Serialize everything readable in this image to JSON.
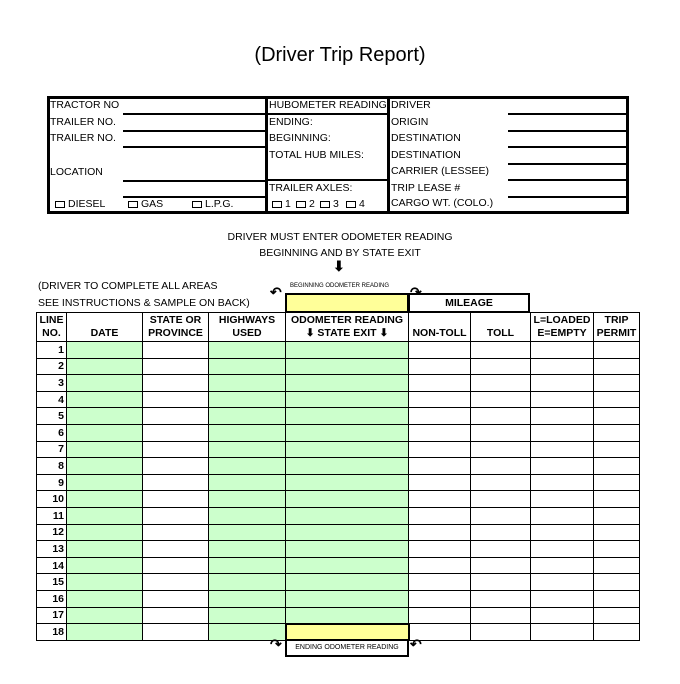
{
  "title": "(Driver Trip Report)",
  "header": {
    "left": [
      "TRACTOR NO",
      "TRAILER NO.",
      "TRAILER NO.",
      "LOCATION"
    ],
    "fuel": [
      "DIESEL",
      "GAS",
      "L.P.G."
    ],
    "mid": [
      "HUBOMETER READING",
      "ENDING:",
      "BEGINNING:",
      "TOTAL HUB MILES:",
      "TRAILER AXLES:"
    ],
    "axles": [
      "1",
      "2",
      "3",
      "4"
    ],
    "right": [
      "DRIVER",
      "ORIGIN",
      "DESTINATION",
      "DESTINATION",
      "CARRIER (LESSEE)",
      "TRIP LEASE #",
      "CARGO WT. (COLO.)"
    ]
  },
  "instructions": {
    "line1": "DRIVER MUST ENTER ODOMETER READING",
    "line2": "BEGINNING AND BY STATE EXIT",
    "note1": "(DRIVER TO COMPLETE ALL AREAS",
    "note2": "SEE INSTRUCTIONS & SAMPLE ON BACK)",
    "begin_label": "BEGINNING ODOMETER READING",
    "end_label": "ENDING ODOMETER READING",
    "mileage": "MILEAGE"
  },
  "table": {
    "columns": [
      [
        "LINE",
        "NO."
      ],
      [
        "",
        "DATE"
      ],
      [
        "STATE OR",
        "PROVINCE"
      ],
      [
        "HIGHWAYS",
        "USED"
      ],
      [
        "ODOMETER READING",
        "⬇ STATE EXIT ⬇"
      ],
      [
        "",
        "NON-TOLL"
      ],
      [
        "",
        "TOLL"
      ],
      [
        "L=LOADED",
        "E=EMPTY"
      ],
      [
        "TRIP",
        "PERMIT"
      ]
    ],
    "rows": [
      "1",
      "2",
      "3",
      "4",
      "5",
      "6",
      "7",
      "8",
      "9",
      "10",
      "11",
      "12",
      "13",
      "14",
      "15",
      "16",
      "17",
      "18"
    ]
  },
  "colors": {
    "entry_green": "#ccffcc",
    "odometer_yellow": "#ffff99"
  }
}
